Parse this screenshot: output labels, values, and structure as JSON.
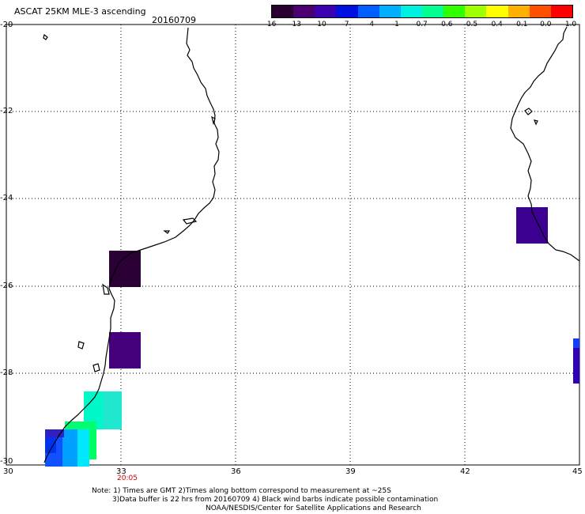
{
  "header": {
    "title": "ASCAT 25KM MLE-3 ascending",
    "date": "20160709"
  },
  "colorbar": {
    "ticks": [
      "-16",
      "-13",
      "-10",
      "-7",
      "-4",
      "-1",
      "-0.7",
      "-0.6",
      "-0.5",
      "-0.4",
      "-0.1",
      "0.0",
      "1.0"
    ],
    "colors": [
      "#2a0030",
      "#4a0070",
      "#3b00b0",
      "#0010e0",
      "#0060ff",
      "#00b0ff",
      "#00f0e0",
      "#00ff90",
      "#30ff00",
      "#a0ff00",
      "#ffff00",
      "#ffb000",
      "#ff5000",
      "#ff0000"
    ]
  },
  "axes": {
    "y_labels": [
      "-20",
      "-22",
      "-24",
      "-26",
      "-28",
      "-30"
    ],
    "x_labels": [
      "30",
      "33",
      "36",
      "39",
      "42",
      "45"
    ]
  },
  "time_label": "20:05",
  "notes": [
    "Note: 1) Times are GMT 2)Times along bottom correspond to measurement at ~25S",
    "3)Data buffer is 22 hrs from 20160709 4) Black wind barbs indicate possible contamination",
    "NOAA/NESDIS/Center for Satellite Applications and Research"
  ]
}
